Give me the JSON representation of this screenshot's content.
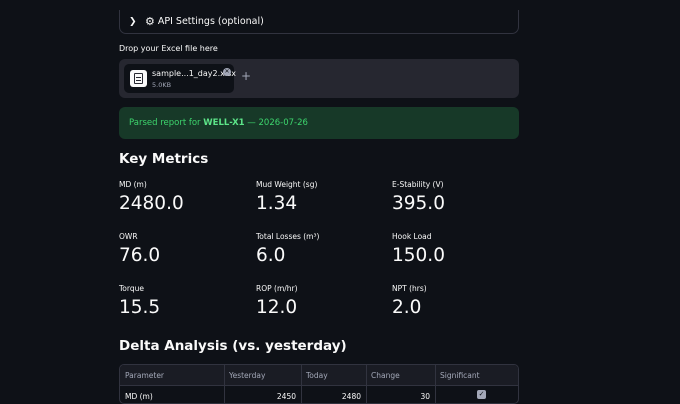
{
  "expander": {
    "label": "API Settings (optional)",
    "chevron_icon": "chevron-right-icon",
    "gear_icon": "gear-icon"
  },
  "uploader": {
    "label": "Drop your Excel file here",
    "file_name": "sample...1_day2.xlsx",
    "file_size": "5.0KB",
    "add_symbol": "+"
  },
  "status": {
    "prefix": "Parsed report for ",
    "well": "WELL-X1",
    "suffix": " — 2026-07-26"
  },
  "key_metrics": {
    "heading": "Key Metrics",
    "items": [
      {
        "label": "MD (m)",
        "value": "2480.0"
      },
      {
        "label": "Mud Weight (sg)",
        "value": "1.34"
      },
      {
        "label": "E-Stability (V)",
        "value": "395.0"
      },
      {
        "label": "OWR",
        "value": "76.0"
      },
      {
        "label": "Total Losses (m³)",
        "value": "6.0"
      },
      {
        "label": "Hook Load",
        "value": "150.0"
      },
      {
        "label": "Torque",
        "value": "15.5"
      },
      {
        "label": "ROP (m/hr)",
        "value": "12.0"
      },
      {
        "label": "NPT (hrs)",
        "value": "2.0"
      }
    ]
  },
  "delta": {
    "heading": "Delta Analysis (vs. yesterday)",
    "columns": [
      "Parameter",
      "Yesterday",
      "Today",
      "Change",
      "Significant"
    ],
    "rows": [
      {
        "parameter": "MD (m)",
        "yesterday": "2450",
        "today": "2480",
        "change": "30",
        "significant": true
      }
    ]
  },
  "colors": {
    "background": "#0e1117",
    "success_bg": "#173928",
    "success_text": "#3dd56d",
    "surface": "#262730"
  }
}
